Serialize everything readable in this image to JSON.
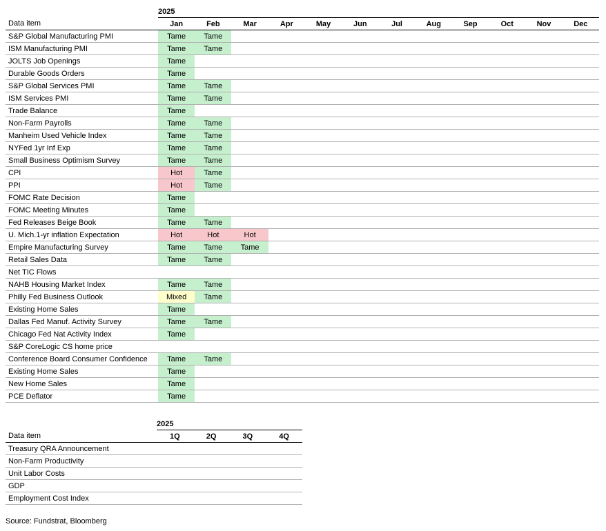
{
  "colors": {
    "tame": "#c6efce",
    "hot": "#f8c7cb",
    "mixed": "#ffffcc",
    "row_border": "#b0b0b0",
    "header_border": "#000000"
  },
  "monthly": {
    "year": "2025",
    "label_header": "Data item",
    "months": [
      "Jan",
      "Feb",
      "Mar",
      "Apr",
      "May",
      "Jun",
      "Jul",
      "Aug",
      "Sep",
      "Oct",
      "Nov",
      "Dec"
    ],
    "rows": [
      {
        "label": "S&P Global Manufacturing PMI",
        "cells": [
          "Tame",
          "Tame",
          "",
          "",
          "",
          "",
          "",
          "",
          "",
          "",
          "",
          ""
        ]
      },
      {
        "label": "ISM Manufacturing PMI",
        "cells": [
          "Tame",
          "Tame",
          "",
          "",
          "",
          "",
          "",
          "",
          "",
          "",
          "",
          ""
        ]
      },
      {
        "label": "JOLTS Job Openings",
        "cells": [
          "Tame",
          "",
          "",
          "",
          "",
          "",
          "",
          "",
          "",
          "",
          "",
          ""
        ]
      },
      {
        "label": "Durable Goods Orders",
        "cells": [
          "Tame",
          "",
          "",
          "",
          "",
          "",
          "",
          "",
          "",
          "",
          "",
          ""
        ]
      },
      {
        "label": "S&P Global Services PMI",
        "cells": [
          "Tame",
          "Tame",
          "",
          "",
          "",
          "",
          "",
          "",
          "",
          "",
          "",
          ""
        ]
      },
      {
        "label": "ISM Services PMI",
        "cells": [
          "Tame",
          "Tame",
          "",
          "",
          "",
          "",
          "",
          "",
          "",
          "",
          "",
          ""
        ]
      },
      {
        "label": "Trade Balance",
        "cells": [
          "Tame",
          "",
          "",
          "",
          "",
          "",
          "",
          "",
          "",
          "",
          "",
          ""
        ]
      },
      {
        "label": "Non-Farm Payrolls",
        "cells": [
          "Tame",
          "Tame",
          "",
          "",
          "",
          "",
          "",
          "",
          "",
          "",
          "",
          ""
        ]
      },
      {
        "label": "Manheim Used Vehicle Index",
        "cells": [
          "Tame",
          "Tame",
          "",
          "",
          "",
          "",
          "",
          "",
          "",
          "",
          "",
          ""
        ]
      },
      {
        "label": "NYFed 1yr Inf Exp",
        "cells": [
          "Tame",
          "Tame",
          "",
          "",
          "",
          "",
          "",
          "",
          "",
          "",
          "",
          ""
        ]
      },
      {
        "label": "Small Business Optimism Survey",
        "cells": [
          "Tame",
          "Tame",
          "",
          "",
          "",
          "",
          "",
          "",
          "",
          "",
          "",
          ""
        ]
      },
      {
        "label": "CPI",
        "cells": [
          "Hot",
          "Tame",
          "",
          "",
          "",
          "",
          "",
          "",
          "",
          "",
          "",
          ""
        ]
      },
      {
        "label": "PPI",
        "cells": [
          "Hot",
          "Tame",
          "",
          "",
          "",
          "",
          "",
          "",
          "",
          "",
          "",
          ""
        ]
      },
      {
        "label": "FOMC Rate Decision",
        "cells": [
          "Tame",
          "",
          "",
          "",
          "",
          "",
          "",
          "",
          "",
          "",
          "",
          ""
        ]
      },
      {
        "label": "FOMC Meeting Minutes",
        "cells": [
          "Tame",
          "",
          "",
          "",
          "",
          "",
          "",
          "",
          "",
          "",
          "",
          ""
        ]
      },
      {
        "label": "Fed Releases Beige Book",
        "cells": [
          "Tame",
          "Tame",
          "",
          "",
          "",
          "",
          "",
          "",
          "",
          "",
          "",
          ""
        ]
      },
      {
        "label": "U. Mich.1-yr  inflation Expectation",
        "cells": [
          "Hot",
          "Hot",
          "Hot",
          "",
          "",
          "",
          "",
          "",
          "",
          "",
          "",
          ""
        ]
      },
      {
        "label": "Empire Manufacturing Survey",
        "cells": [
          "Tame",
          "Tame",
          "Tame",
          "",
          "",
          "",
          "",
          "",
          "",
          "",
          "",
          ""
        ]
      },
      {
        "label": "Retail Sales Data",
        "cells": [
          "Tame",
          "Tame",
          "",
          "",
          "",
          "",
          "",
          "",
          "",
          "",
          "",
          ""
        ]
      },
      {
        "label": "Net TIC Flows",
        "cells": [
          "",
          "",
          "",
          "",
          "",
          "",
          "",
          "",
          "",
          "",
          "",
          ""
        ]
      },
      {
        "label": "NAHB Housing Market Index",
        "cells": [
          "Tame",
          "Tame",
          "",
          "",
          "",
          "",
          "",
          "",
          "",
          "",
          "",
          ""
        ]
      },
      {
        "label": "Philly Fed Business Outlook",
        "cells": [
          "Mixed",
          "Tame",
          "",
          "",
          "",
          "",
          "",
          "",
          "",
          "",
          "",
          ""
        ]
      },
      {
        "label": "Existing Home Sales",
        "cells": [
          "Tame",
          "",
          "",
          "",
          "",
          "",
          "",
          "",
          "",
          "",
          "",
          ""
        ]
      },
      {
        "label": "Dallas Fed Manuf. Activity Survey",
        "cells": [
          "Tame",
          "Tame",
          "",
          "",
          "",
          "",
          "",
          "",
          "",
          "",
          "",
          ""
        ]
      },
      {
        "label": "Chicago Fed Nat Activity Index",
        "cells": [
          "Tame",
          "",
          "",
          "",
          "",
          "",
          "",
          "",
          "",
          "",
          "",
          ""
        ]
      },
      {
        "label": "S&P CoreLogic CS home price",
        "cells": [
          "",
          "",
          "",
          "",
          "",
          "",
          "",
          "",
          "",
          "",
          "",
          ""
        ]
      },
      {
        "label": "Conference Board Consumer Confidence",
        "cells": [
          "Tame",
          "Tame",
          "",
          "",
          "",
          "",
          "",
          "",
          "",
          "",
          "",
          ""
        ]
      },
      {
        "label": "Existing Home Sales",
        "cells": [
          "Tame",
          "",
          "",
          "",
          "",
          "",
          "",
          "",
          "",
          "",
          "",
          ""
        ]
      },
      {
        "label": "New Home Sales",
        "cells": [
          "Tame",
          "",
          "",
          "",
          "",
          "",
          "",
          "",
          "",
          "",
          "",
          ""
        ]
      },
      {
        "label": "PCE Deflator",
        "cells": [
          "Tame",
          "",
          "",
          "",
          "",
          "",
          "",
          "",
          "",
          "",
          "",
          ""
        ]
      }
    ]
  },
  "quarterly": {
    "year": "2025",
    "label_header": "Data item",
    "quarters": [
      "1Q",
      "2Q",
      "3Q",
      "4Q"
    ],
    "rows": [
      {
        "label": "Treasury QRA Announcement"
      },
      {
        "label": "Non-Farm Productivity"
      },
      {
        "label": "Unit Labor Costs"
      },
      {
        "label": "GDP"
      },
      {
        "label": "Employment Cost Index"
      }
    ]
  },
  "source": "Source: Fundstrat, Bloomberg"
}
